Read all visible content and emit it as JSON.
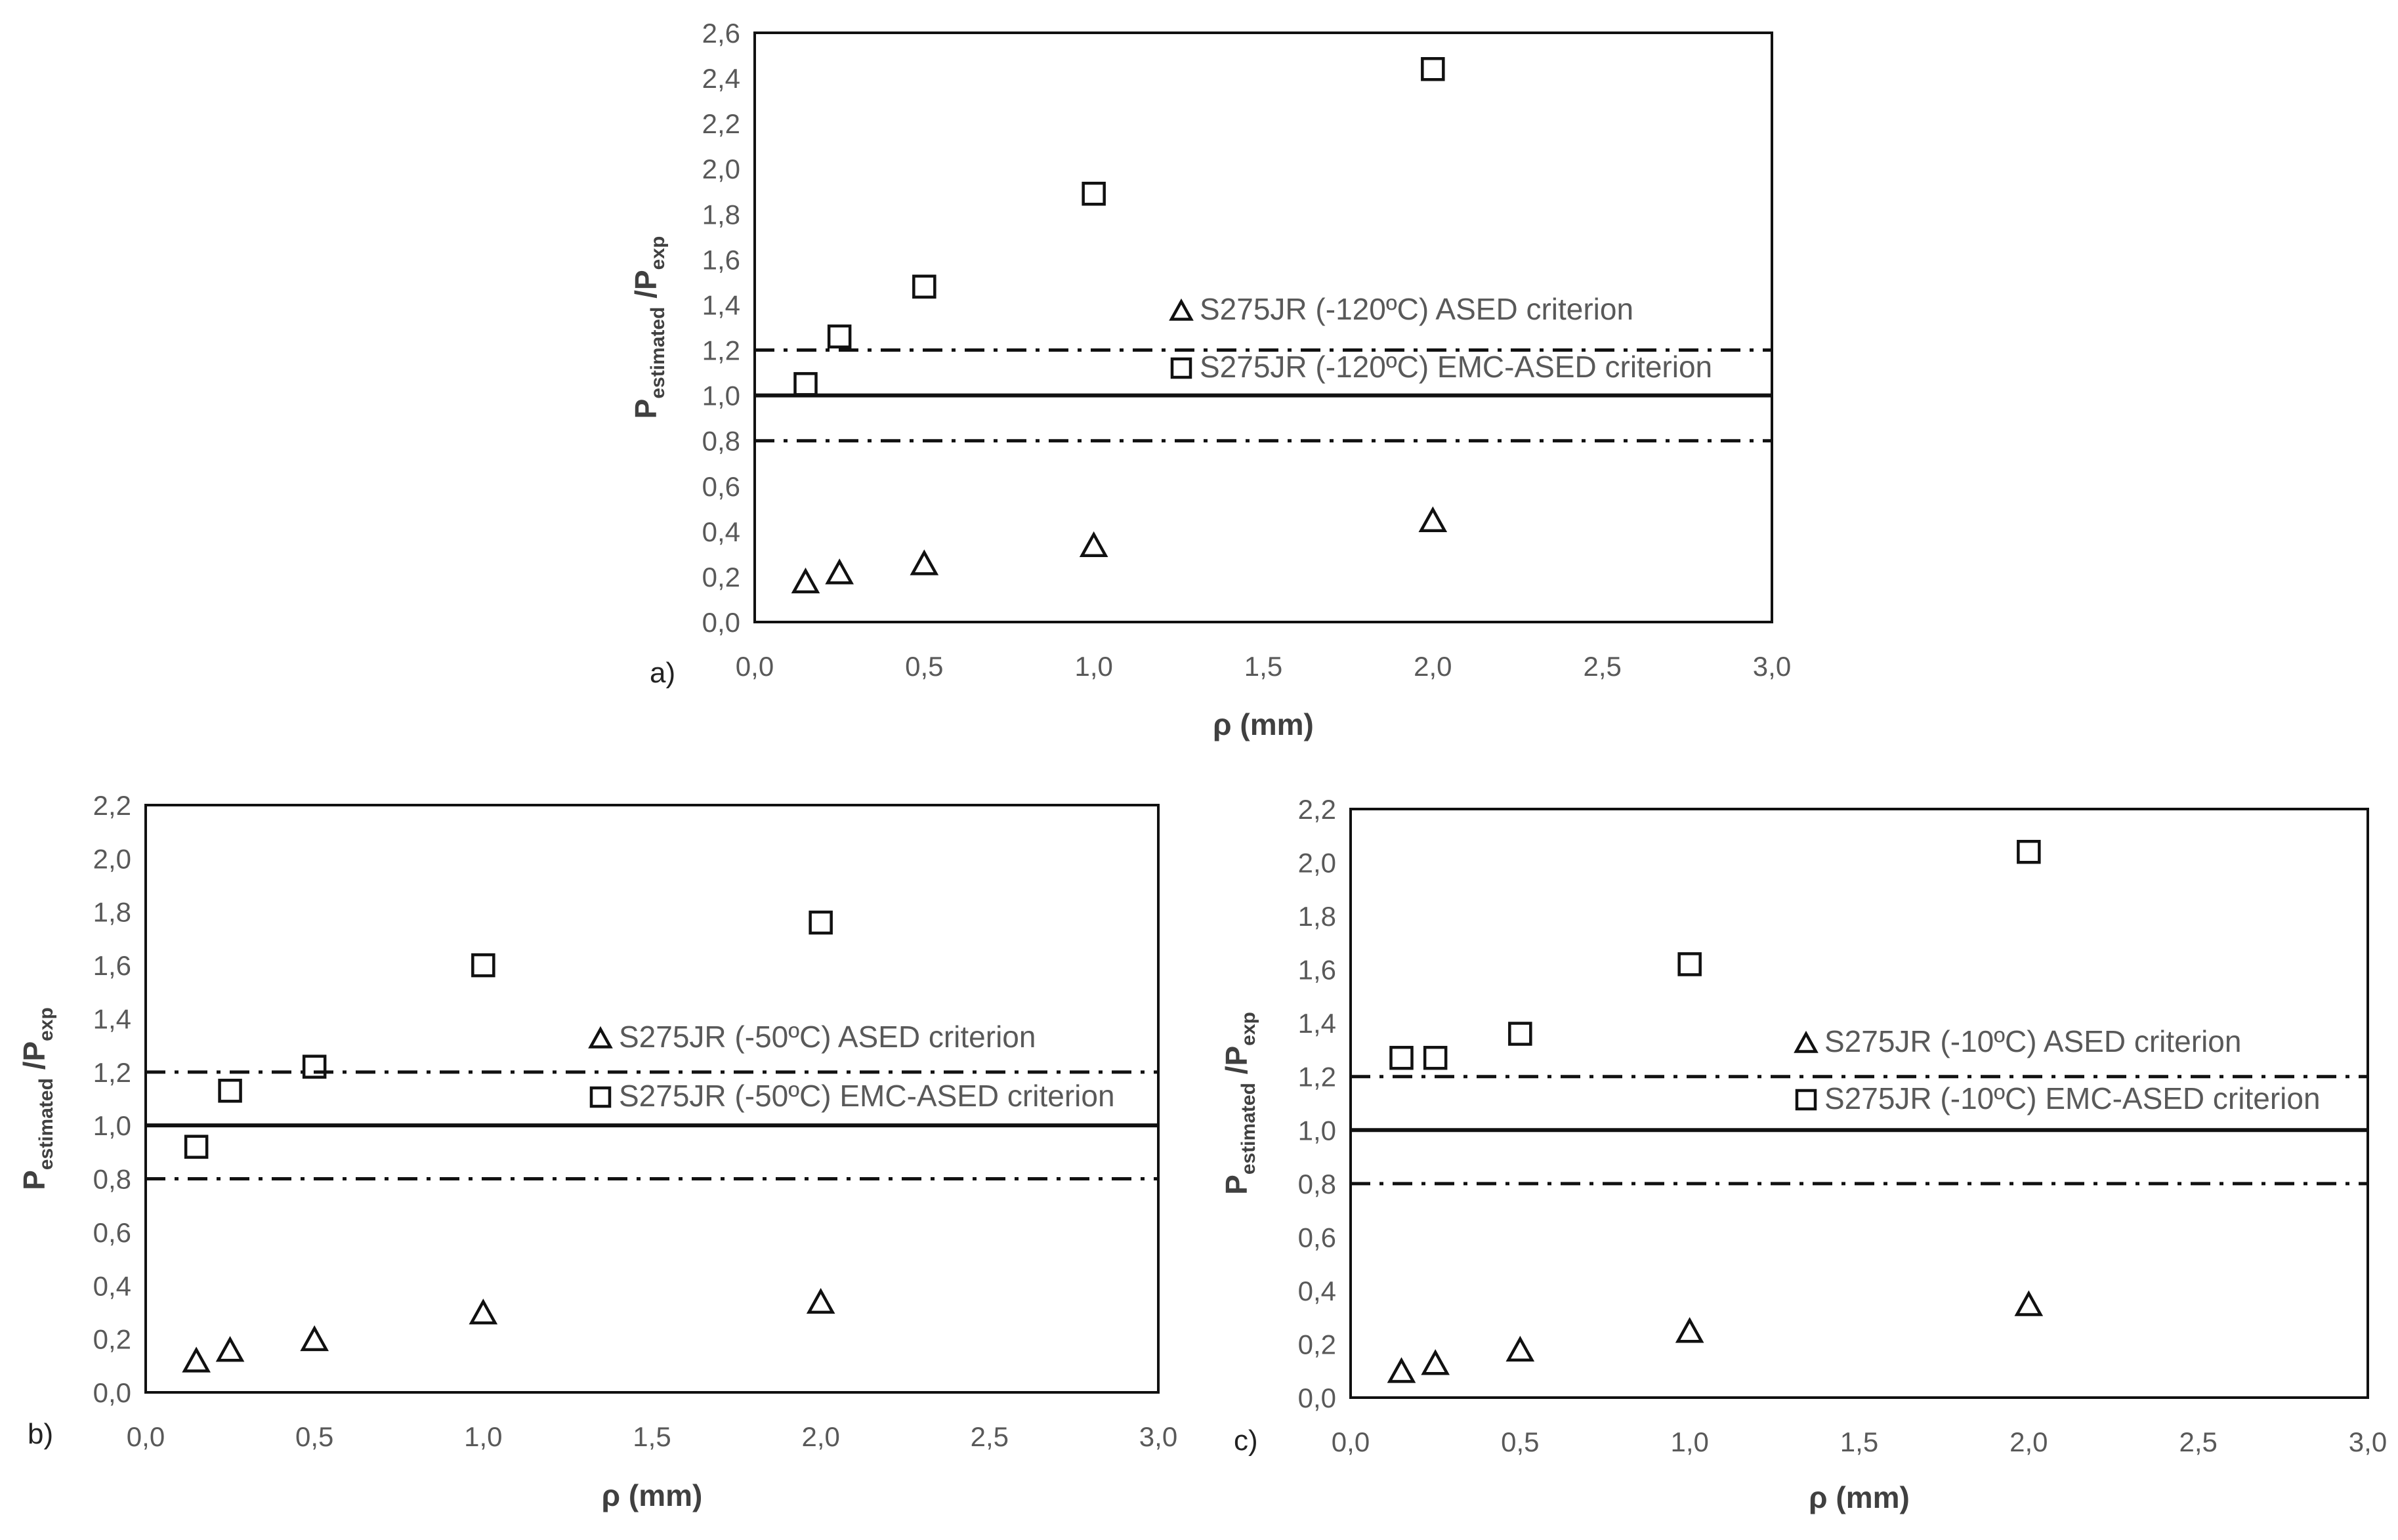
{
  "chart_data": [
    {
      "type": "scatter",
      "panel_label": "a)",
      "xlabel": "ρ (mm)",
      "ylabel_main": "P",
      "ylabel_sub1": "estimated",
      "ylabel_mid": " /P",
      "ylabel_sub2": "exp",
      "xlim": [
        0,
        3
      ],
      "ylim": [
        0,
        2.6
      ],
      "xticks": [
        "0,0",
        "0,5",
        "1,0",
        "1,5",
        "2,0",
        "2,5",
        "3,0"
      ],
      "yticks": [
        "0,0",
        "0,2",
        "0,4",
        "0,6",
        "0,8",
        "1,0",
        "1,2",
        "1,4",
        "1,6",
        "1,8",
        "2,0",
        "2,2",
        "2,4",
        "2,6"
      ],
      "reference_lines": [
        {
          "y": 1.0,
          "style": "solid"
        },
        {
          "y": 1.2,
          "style": "dashdot"
        },
        {
          "y": 0.8,
          "style": "dashdot"
        }
      ],
      "legend_position": "center-right",
      "series": [
        {
          "name": "S275JR (-120ºC) ASED criterion",
          "marker": "triangle",
          "x": [
            0.15,
            0.25,
            0.5,
            1.0,
            2.0
          ],
          "y": [
            0.18,
            0.22,
            0.26,
            0.34,
            0.45
          ]
        },
        {
          "name": "S275JR (-120ºC) EMC-ASED criterion",
          "marker": "square",
          "x": [
            0.15,
            0.25,
            0.5,
            1.0,
            2.0
          ],
          "y": [
            1.05,
            1.26,
            1.48,
            1.89,
            2.44
          ]
        }
      ]
    },
    {
      "type": "scatter",
      "panel_label": "b)",
      "xlabel": "ρ (mm)",
      "ylabel_main": "P",
      "ylabel_sub1": "estimated",
      "ylabel_mid": " /P",
      "ylabel_sub2": "exp",
      "xlim": [
        0,
        3
      ],
      "ylim": [
        0,
        2.2
      ],
      "xticks": [
        "0,0",
        "0,5",
        "1,0",
        "1,5",
        "2,0",
        "2,5",
        "3,0"
      ],
      "yticks": [
        "0,0",
        "0,2",
        "0,4",
        "0,6",
        "0,8",
        "1,0",
        "1,2",
        "1,4",
        "1,6",
        "1,8",
        "2,0",
        "2,2"
      ],
      "reference_lines": [
        {
          "y": 1.0,
          "style": "solid"
        },
        {
          "y": 1.2,
          "style": "dashdot"
        },
        {
          "y": 0.8,
          "style": "dashdot"
        }
      ],
      "legend_position": "center-right",
      "series": [
        {
          "name": "S275JR (-50ºC) ASED criterion",
          "marker": "triangle",
          "x": [
            0.15,
            0.25,
            0.5,
            1.0,
            2.0
          ],
          "y": [
            0.12,
            0.16,
            0.2,
            0.3,
            0.34
          ]
        },
        {
          "name": "S275JR (-50ºC) EMC-ASED criterion",
          "marker": "square",
          "x": [
            0.15,
            0.25,
            0.5,
            1.0,
            2.0
          ],
          "y": [
            0.92,
            1.13,
            1.22,
            1.6,
            1.76
          ]
        }
      ]
    },
    {
      "type": "scatter",
      "panel_label": "c)",
      "xlabel": "ρ (mm)",
      "ylabel_main": "P",
      "ylabel_sub1": "estimated",
      "ylabel_mid": " /P",
      "ylabel_sub2": "exp",
      "xlim": [
        0,
        3
      ],
      "ylim": [
        0,
        2.2
      ],
      "xticks": [
        "0,0",
        "0,5",
        "1,0",
        "1,5",
        "2,0",
        "2,5",
        "3,0"
      ],
      "yticks": [
        "0,0",
        "0,2",
        "0,4",
        "0,6",
        "0,8",
        "1,0",
        "1,2",
        "1,4",
        "1,6",
        "1,8",
        "2,0",
        "2,2"
      ],
      "reference_lines": [
        {
          "y": 1.0,
          "style": "solid"
        },
        {
          "y": 1.2,
          "style": "dashdot"
        },
        {
          "y": 0.8,
          "style": "dashdot"
        }
      ],
      "legend_position": "center-right",
      "series": [
        {
          "name": "S275JR (-10ºC) ASED criterion",
          "marker": "triangle",
          "x": [
            0.15,
            0.25,
            0.5,
            1.0,
            2.0
          ],
          "y": [
            0.1,
            0.13,
            0.18,
            0.25,
            0.35
          ]
        },
        {
          "name": "S275JR (-10ºC) EMC-ASED criterion",
          "marker": "square",
          "x": [
            0.15,
            0.25,
            0.5,
            1.0,
            2.0
          ],
          "y": [
            1.27,
            1.27,
            1.36,
            1.62,
            2.04
          ]
        }
      ]
    }
  ]
}
